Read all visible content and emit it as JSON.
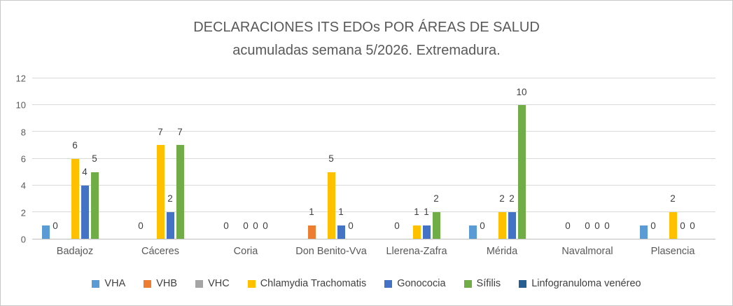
{
  "chart_data": {
    "type": "bar",
    "title_line1": "DECLARACIONES ITS EDOs POR ÁREAS DE SALUD",
    "title_line2": "acumuladas semana 5/2026. Extremadura.",
    "categories": [
      "Badajoz",
      "Cáceres",
      "Coria",
      "Don Benito-Vva",
      "Llerena-Zafra",
      "Mérida",
      "Navalmoral",
      "Plasencia"
    ],
    "series": [
      {
        "name": "VHA",
        "color": "#5B9BD5",
        "values": [
          1,
          0,
          0,
          0,
          0,
          1,
          0,
          1
        ],
        "labels_visible": false
      },
      {
        "name": "VHB",
        "color": "#ED7D31",
        "values": [
          0,
          0,
          0,
          1,
          0,
          0,
          0,
          0
        ],
        "labels_visible": true
      },
      {
        "name": "VHC",
        "color": "#A5A5A5",
        "values": [
          0,
          0,
          0,
          0,
          0,
          0,
          0,
          0
        ],
        "labels_visible": false
      },
      {
        "name": "Chlamydia Trachomatis",
        "color": "#FFC000",
        "values": [
          6,
          7,
          0,
          5,
          1,
          2,
          0,
          2
        ],
        "labels_visible": true
      },
      {
        "name": "Gonococia",
        "color": "#4472C4",
        "values": [
          4,
          2,
          0,
          1,
          1,
          2,
          0,
          0
        ],
        "labels_visible": true
      },
      {
        "name": "Sífilis",
        "color": "#70AD47",
        "values": [
          5,
          7,
          0,
          0,
          2,
          10,
          0,
          0
        ],
        "labels_visible": true
      },
      {
        "name": "Linfogranuloma venéreo",
        "color": "#255E91",
        "values": [
          0,
          0,
          0,
          0,
          0,
          0,
          0,
          0
        ],
        "labels_visible": false
      }
    ],
    "axes": {
      "y": {
        "min": 0,
        "max": 12,
        "ticks": [
          0,
          2,
          4,
          6,
          8,
          10,
          12
        ]
      }
    },
    "grid": "horizontal",
    "legend_position": "bottom",
    "colors": {
      "title_text": "#595959",
      "axis_text": "#595959",
      "data_label_text": "#404040",
      "gridline": "#D9D9D9",
      "axis_line": "#BFBFBF",
      "frame_border": "#C9C9C9",
      "background": "#FFFFFF"
    }
  }
}
